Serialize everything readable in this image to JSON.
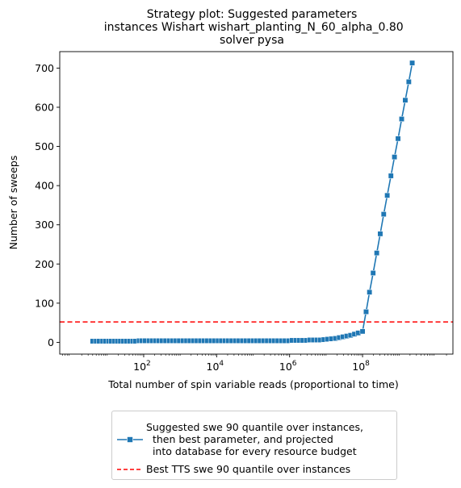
{
  "chart_data": {
    "type": "line",
    "title": "Strategy plot: Suggested parameters\n instances Wishart wishart_planting_N_60_alpha_0.80\nsolver pysa",
    "xlabel": "Total number of spin variable reads (proportional to time)",
    "ylabel": "Number of sweeps",
    "xscale": "log",
    "xlim": [
      0.5,
      30000000000
    ],
    "ylim": [
      -30,
      742
    ],
    "x_ticks": [
      {
        "value": 100,
        "base": "10",
        "exp": "2"
      },
      {
        "value": 10000,
        "base": "10",
        "exp": "4"
      },
      {
        "value": 1000000,
        "base": "10",
        "exp": "6"
      },
      {
        "value": 100000000,
        "base": "10",
        "exp": "8"
      }
    ],
    "y_ticks": [
      0,
      100,
      200,
      300,
      400,
      500,
      600,
      700
    ],
    "legend_position": "below plot",
    "series": [
      {
        "name": "Suggested swe 90 quantile over instances,\n  then best parameter, and projected\n  into database for every resource budget",
        "style": "line-square-markers",
        "color": "#1f77b4",
        "x": [
          4,
          5,
          6,
          7.5,
          9,
          11,
          13,
          16,
          19,
          23,
          28,
          34,
          41,
          50,
          60,
          75,
          90,
          110,
          140,
          170,
          210,
          260,
          320,
          400,
          500,
          620,
          770,
          950,
          1200,
          1500,
          1850,
          2300,
          2900,
          3600,
          4500,
          5600,
          7000,
          8700,
          11000,
          13500,
          17000,
          21000,
          26000,
          33000,
          41000,
          51000,
          64000,
          80000,
          100000,
          125000,
          155000,
          195000,
          245000,
          305000,
          380000,
          475000,
          600000,
          750000,
          940000,
          1180000,
          1480000,
          1850000,
          2300000,
          2900000,
          3600000,
          4500000,
          5600000,
          7000000,
          8700000,
          11000000,
          14000000,
          18000000,
          23000000,
          29000000,
          37000000,
          47000000,
          60000000,
          76000000,
          100000000,
          125000000,
          155000000,
          195000000,
          245000000,
          305000000,
          380000000,
          475000000,
          600000000,
          750000000,
          940000000,
          1180000000,
          1480000000,
          1850000000,
          2300000000
        ],
        "y": [
          3,
          3,
          3,
          3,
          3,
          3,
          3,
          3,
          3,
          3,
          3,
          3,
          3,
          3,
          3,
          4,
          4,
          4,
          4,
          4,
          4,
          4,
          4,
          4,
          4,
          4,
          4,
          4,
          4,
          4,
          4,
          4,
          4,
          4,
          4,
          4,
          4,
          4,
          4,
          4,
          4,
          4,
          4,
          4,
          4,
          4,
          4,
          4,
          4,
          4,
          4,
          4,
          4,
          4,
          4,
          4,
          4,
          4,
          4,
          5,
          5,
          5,
          5,
          5,
          6,
          6,
          6,
          6,
          7,
          8,
          9,
          10,
          12,
          14,
          16,
          18,
          21,
          24,
          28,
          78,
          128,
          177,
          228,
          277,
          327,
          375,
          425,
          473,
          520,
          570,
          618,
          665,
          713
        ]
      },
      {
        "name": "Best TTS swe 90 quantile over instances",
        "style": "dashed-hline",
        "color": "#ff0000",
        "y": 52
      }
    ]
  }
}
